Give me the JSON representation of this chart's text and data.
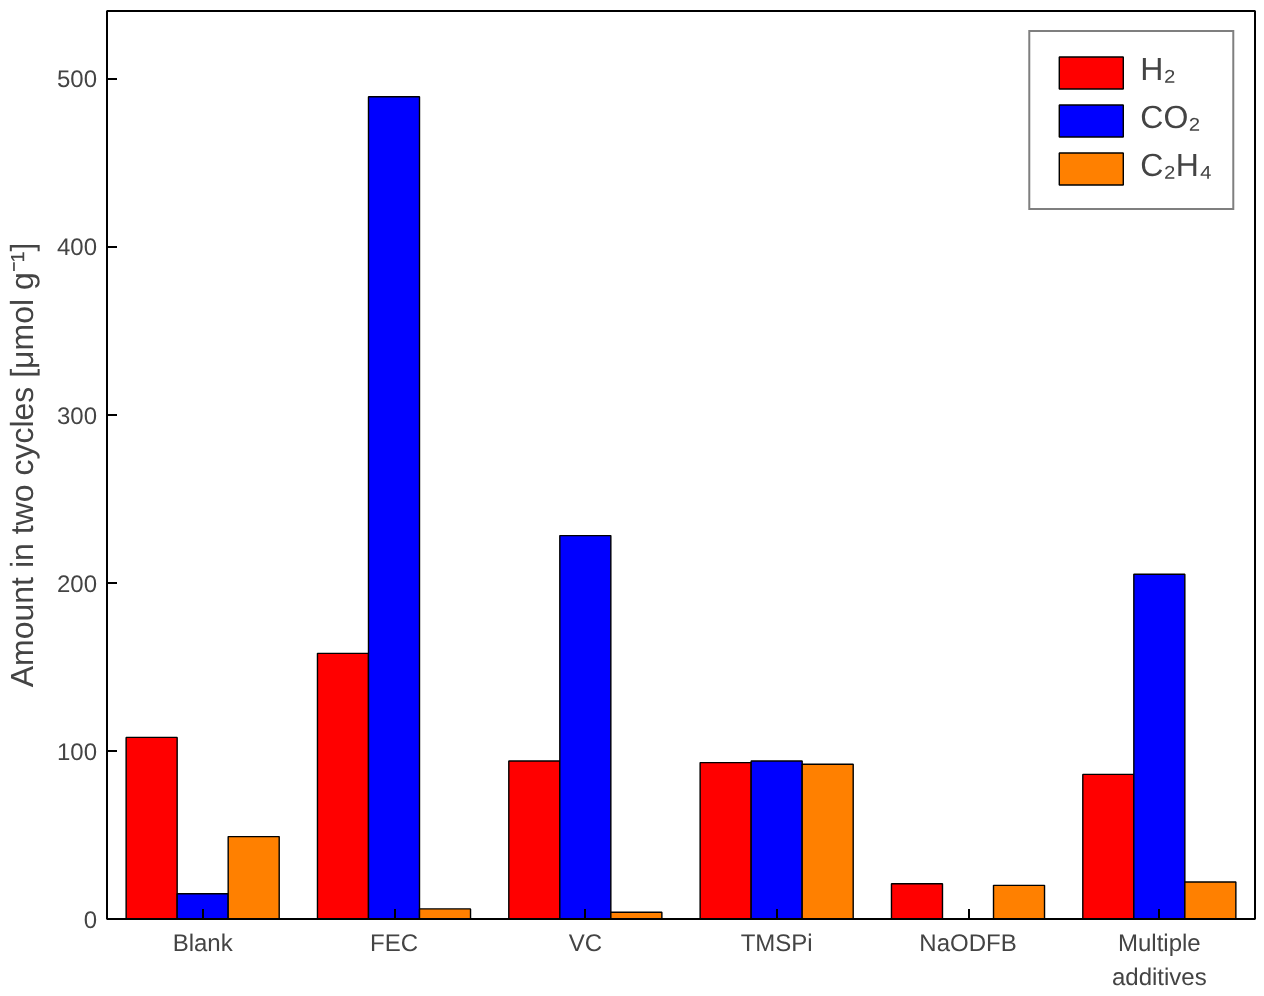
{
  "chart_data": {
    "type": "bar",
    "ylabel": "Amount in two cycles [μmol g⁻¹]",
    "categories": [
      "Blank",
      "FEC",
      "VC",
      "TMSPi",
      "NaODFB",
      "Multiple\nadditives"
    ],
    "series": [
      {
        "name": "H₂",
        "color": "#ff0000",
        "values": [
          108,
          158,
          94,
          93,
          21,
          86
        ]
      },
      {
        "name": "CO₂",
        "color": "#0000ff",
        "values": [
          15,
          489,
          228,
          94,
          null,
          205
        ]
      },
      {
        "name": "C₂H₄",
        "color": "#ff8000",
        "values": [
          49,
          6,
          4,
          92,
          20,
          22
        ]
      }
    ],
    "ylim": [
      0,
      540
    ],
    "yticks": [
      0,
      100,
      200,
      300,
      400,
      500
    ],
    "grid": false,
    "legend": "top right"
  }
}
